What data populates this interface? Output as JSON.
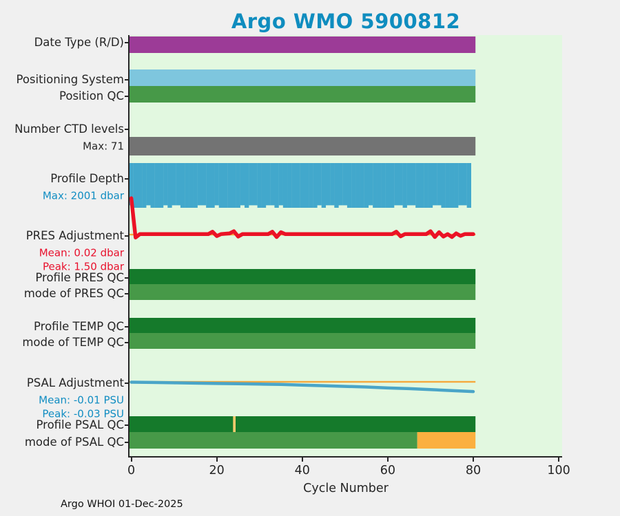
{
  "title": {
    "text": "Argo WMO 5900812",
    "color": "#0f8dbf"
  },
  "footer": "Argo WHOI 01-Dec-2025",
  "x_axis": {
    "label": "Cycle Number",
    "ticks": [
      0,
      20,
      40,
      60,
      80,
      100
    ]
  },
  "palette": {
    "background": "#f0f0f0",
    "plot_background": "#e2f8e0",
    "axis": "#262626",
    "title_blue": "#0f8dbf",
    "info_blue": "#118dc2",
    "info_red": "#e8112d"
  },
  "row_labels": [
    {
      "text": "Date Type (R/D)",
      "color": "#262626",
      "sub": false
    },
    {
      "text": "Positioning System",
      "color": "#262626",
      "sub": false
    },
    {
      "text": "Position QC",
      "color": "#262626",
      "sub": false
    },
    {
      "text": "Number CTD levels",
      "color": "#262626",
      "sub": false
    },
    {
      "text": "Max: 71",
      "color": "#262626",
      "sub": true
    },
    {
      "text": "Profile Depth",
      "color": "#262626",
      "sub": false
    },
    {
      "text": "Max: 2001 dbar",
      "color": "#118dc2",
      "sub": true
    },
    {
      "text": "PRES Adjustment",
      "color": "#262626",
      "sub": false
    },
    {
      "text": "Mean: 0.02 dbar",
      "color": "#e8112d",
      "sub": true
    },
    {
      "text": "Peak: 1.50 dbar",
      "color": "#e8112d",
      "sub": true
    },
    {
      "text": "Profile PRES QC",
      "color": "#262626",
      "sub": false
    },
    {
      "text": "mode of PRES QC",
      "color": "#262626",
      "sub": false
    },
    {
      "text": "Profile TEMP QC",
      "color": "#262626",
      "sub": false
    },
    {
      "text": "mode of TEMP QC",
      "color": "#262626",
      "sub": false
    },
    {
      "text": "PSAL Adjustment",
      "color": "#262626",
      "sub": false
    },
    {
      "text": "Mean: -0.01 PSU",
      "color": "#118dc2",
      "sub": true
    },
    {
      "text": "Peak: -0.03 PSU",
      "color": "#118dc2",
      "sub": true
    },
    {
      "text": "Profile PSAL QC",
      "color": "#262626",
      "sub": false
    },
    {
      "text": "mode of PSAL QC",
      "color": "#262626",
      "sub": false
    }
  ],
  "chart_data": {
    "type": "multi-row float status timeline",
    "xlabel": "Cycle Number",
    "x_range": [
      0,
      100
    ],
    "cycles_with_data": [
      0,
      80
    ],
    "rows": [
      {
        "name": "date_type",
        "kind": "bar",
        "segments": [
          {
            "span": [
              0,
              80
            ],
            "color": "#9c3b97"
          }
        ]
      },
      {
        "name": "positioning_system",
        "kind": "bar",
        "segments": [
          {
            "span": [
              0,
              80
            ],
            "color": "#7ec6de"
          }
        ]
      },
      {
        "name": "position_qc",
        "kind": "bar",
        "segments": [
          {
            "span": [
              0,
              80
            ],
            "color": "#479948"
          }
        ]
      },
      {
        "name": "ctd_levels",
        "kind": "bar",
        "max_levels": 71,
        "segments": [
          {
            "span": [
              0,
              80
            ],
            "color": "#737373"
          }
        ]
      },
      {
        "name": "profile_depth",
        "kind": "depth_bars",
        "color": "#42a8cc",
        "max_dbar": 2001,
        "values": [
          1890,
          2001,
          2001,
          2001,
          1890,
          2001,
          2001,
          2001,
          1890,
          2001,
          1890,
          1890,
          2001,
          2001,
          2001,
          2001,
          1890,
          1890,
          2001,
          2001,
          1890,
          2001,
          2001,
          2001,
          2001,
          2001,
          1890,
          2001,
          1890,
          1890,
          2001,
          2001,
          1890,
          1890,
          2001,
          1890,
          2001,
          2001,
          2001,
          2001,
          2001,
          2001,
          2001,
          2001,
          1890,
          2001,
          1890,
          1890,
          2001,
          1890,
          1890,
          2001,
          2001,
          2001,
          2001,
          2001,
          1890,
          2001,
          2001,
          2001,
          2001,
          2001,
          1890,
          1890,
          2001,
          1890,
          1890,
          2001,
          2001,
          2001,
          2001,
          1890,
          1890,
          2001,
          2001,
          2001,
          2001,
          1890,
          1890,
          2001
        ]
      },
      {
        "name": "pres_adjustment",
        "kind": "line",
        "unit": "dbar",
        "mean": 0.02,
        "peak": 1.5,
        "color": "#eb1226",
        "zero_line_color": "#f5a83c",
        "points": [
          [
            0,
            1.5
          ],
          [
            1,
            -0.12
          ],
          [
            2,
            0.02
          ],
          [
            18,
            0.02
          ],
          [
            19,
            0.12
          ],
          [
            20,
            -0.06
          ],
          [
            21,
            0.02
          ],
          [
            23,
            0.05
          ],
          [
            24,
            0.14
          ],
          [
            25,
            -0.08
          ],
          [
            26,
            0.02
          ],
          [
            32,
            0.02
          ],
          [
            33,
            0.12
          ],
          [
            34,
            -0.1
          ],
          [
            35,
            0.1
          ],
          [
            36,
            0.02
          ],
          [
            61,
            0.02
          ],
          [
            62,
            0.12
          ],
          [
            63,
            -0.07
          ],
          [
            64,
            0.02
          ],
          [
            69,
            0.02
          ],
          [
            70,
            0.14
          ],
          [
            71,
            -0.1
          ],
          [
            72,
            0.1
          ],
          [
            73,
            -0.08
          ],
          [
            74,
            0.02
          ],
          [
            75,
            -0.1
          ],
          [
            76,
            0.05
          ],
          [
            77,
            -0.05
          ],
          [
            78,
            0.02
          ],
          [
            80,
            0.02
          ]
        ]
      },
      {
        "name": "profile_pres_qc",
        "kind": "bar",
        "segments": [
          {
            "span": [
              0,
              80
            ],
            "color": "#157a2b"
          }
        ]
      },
      {
        "name": "mode_pres_qc",
        "kind": "bar",
        "segments": [
          {
            "span": [
              0,
              80
            ],
            "color": "#479948"
          }
        ]
      },
      {
        "name": "profile_temp_qc",
        "kind": "bar",
        "segments": [
          {
            "span": [
              0,
              80
            ],
            "color": "#157a2b"
          }
        ]
      },
      {
        "name": "mode_temp_qc",
        "kind": "bar",
        "segments": [
          {
            "span": [
              0,
              80
            ],
            "color": "#479948"
          }
        ]
      },
      {
        "name": "psal_adjustment",
        "kind": "line",
        "unit": "PSU",
        "mean": -0.01,
        "peak": -0.03,
        "color": "#4aa5c8",
        "zero_line_color": "#f5a83c",
        "points": [
          [
            0,
            -0.001
          ],
          [
            5,
            -0.002
          ],
          [
            10,
            -0.003
          ],
          [
            15,
            -0.004
          ],
          [
            20,
            -0.005
          ],
          [
            25,
            -0.006
          ],
          [
            30,
            -0.007
          ],
          [
            35,
            -0.008
          ],
          [
            40,
            -0.01
          ],
          [
            45,
            -0.012
          ],
          [
            50,
            -0.014
          ],
          [
            55,
            -0.016
          ],
          [
            60,
            -0.019
          ],
          [
            65,
            -0.021
          ],
          [
            70,
            -0.024
          ],
          [
            75,
            -0.027
          ],
          [
            80,
            -0.03
          ]
        ]
      },
      {
        "name": "profile_psal_qc",
        "kind": "bar",
        "segments": [
          {
            "span": [
              0,
              80
            ],
            "color": "#157a2b"
          },
          {
            "span": [
              23.8,
              24.4
            ],
            "color": "#f9cb6e"
          }
        ]
      },
      {
        "name": "mode_psal_qc",
        "kind": "bar",
        "segments": [
          {
            "span": [
              0,
              66.9
            ],
            "color": "#479948"
          },
          {
            "span": [
              66.9,
              80
            ],
            "color": "#fbb040"
          }
        ]
      }
    ]
  }
}
